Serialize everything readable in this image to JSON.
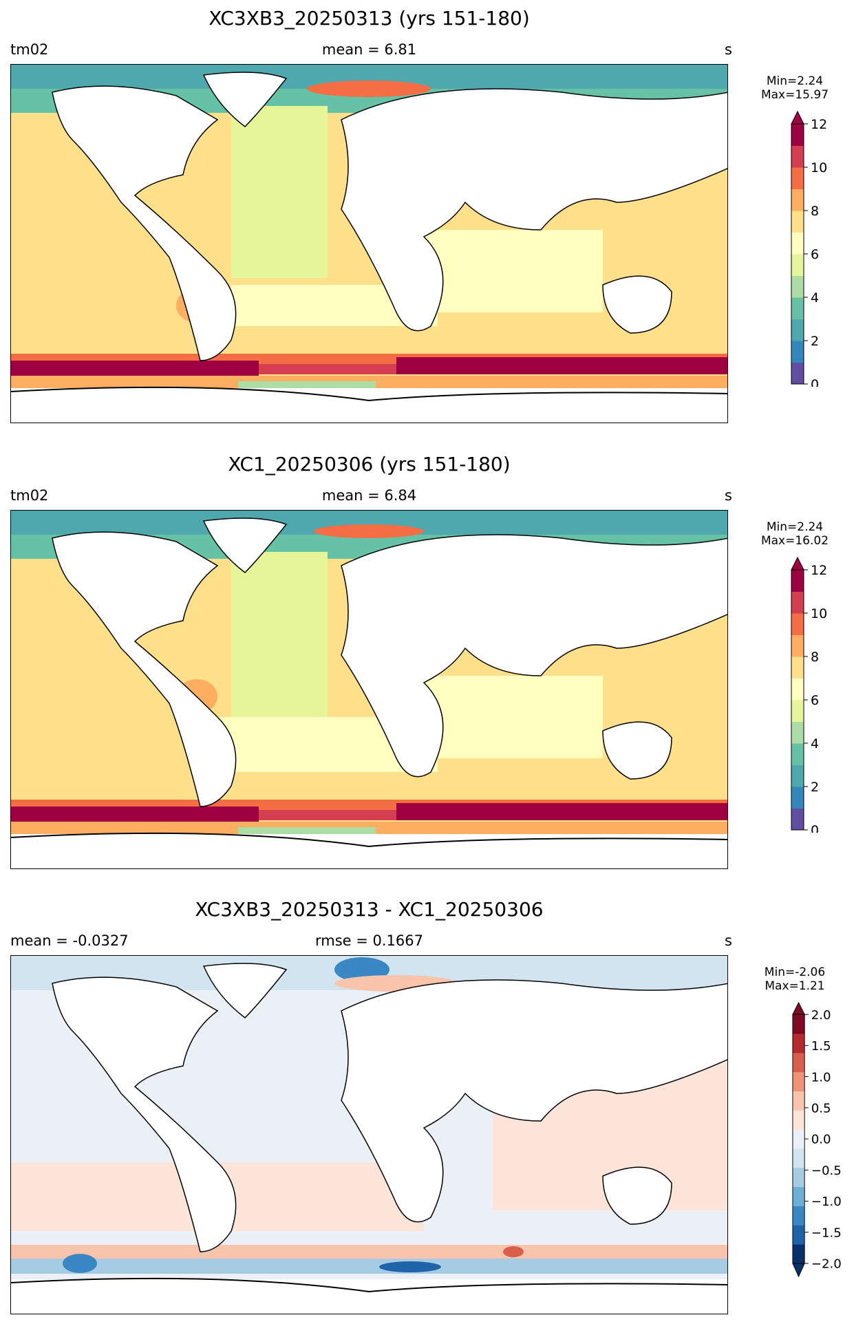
{
  "panels": [
    {
      "title": "XC3XB3_20250313 (yrs 151-180)",
      "left_label": "tm02",
      "center_label": "mean = 6.81",
      "right_label": "s",
      "min_label": "Min=2.24",
      "max_label": "Max=15.97"
    },
    {
      "title": "XC1_20250306 (yrs 151-180)",
      "left_label": "tm02",
      "center_label": "mean = 6.84",
      "right_label": "s",
      "min_label": "Min=2.24",
      "max_label": "Max=16.02"
    },
    {
      "title": "XC3XB3_20250313 - XC1_20250306",
      "left_label": "mean = -0.0327",
      "center_label": "rmse = 0.1667",
      "right_label": "s",
      "min_label": "Min=-2.06",
      "max_label": "Max=1.21"
    }
  ],
  "chart_data": [
    {
      "type": "heatmap",
      "title": "XC3XB3_20250313 (yrs 151-180)",
      "variable": "tm02",
      "units": "s",
      "mean": 6.81,
      "min": 2.24,
      "max": 15.97,
      "colormap": "RdYlBu_r-like (Spectral)",
      "colorbar": {
        "ticks": [
          "0",
          "2",
          "4",
          "6",
          "8",
          "10",
          "12"
        ],
        "range": [
          0,
          12
        ],
        "extend": "max",
        "colors": [
          "#5e4fa2",
          "#3288bd",
          "#4fa8ad",
          "#66c2a5",
          "#abdda4",
          "#e6f598",
          "#ffffbf",
          "#fee08b",
          "#fdae61",
          "#f46d43",
          "#d53e4f",
          "#9e0142"
        ]
      }
    },
    {
      "type": "heatmap",
      "title": "XC1_20250306 (yrs 151-180)",
      "variable": "tm02",
      "units": "s",
      "mean": 6.84,
      "min": 2.24,
      "max": 16.02,
      "colormap": "RdYlBu_r-like (Spectral)",
      "colorbar": {
        "ticks": [
          "0",
          "2",
          "4",
          "6",
          "8",
          "10",
          "12"
        ],
        "range": [
          0,
          12
        ],
        "extend": "max",
        "colors": [
          "#5e4fa2",
          "#3288bd",
          "#4fa8ad",
          "#66c2a5",
          "#abdda4",
          "#e6f598",
          "#ffffbf",
          "#fee08b",
          "#fdae61",
          "#f46d43",
          "#d53e4f",
          "#9e0142"
        ]
      }
    },
    {
      "type": "heatmap",
      "title": "XC3XB3_20250313 - XC1_20250306",
      "units": "s",
      "mean": -0.0327,
      "rmse": 0.1667,
      "min": -2.06,
      "max": 1.21,
      "colormap": "RdBu_r",
      "colorbar": {
        "ticks": [
          "2.0",
          "1.5",
          "1.0",
          "0.5",
          "0.0",
          "−0.5",
          "−1.0",
          "−1.5",
          "−2.0"
        ],
        "range": [
          -2,
          2
        ],
        "extend": "both",
        "colors": [
          "#08306b",
          "#1f63a8",
          "#3a88c3",
          "#6daed4",
          "#a5cce3",
          "#d2e4f0",
          "#eaf0f5",
          "#fde4d8",
          "#f8c4ab",
          "#f09378",
          "#d95f4d",
          "#b52a30",
          "#800a21"
        ]
      }
    }
  ]
}
